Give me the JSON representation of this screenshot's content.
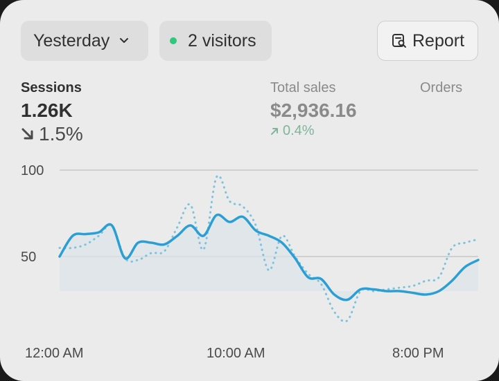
{
  "toolbar": {
    "date_range": "Yesterday",
    "visitors": "2 visitors",
    "report_label": "Report"
  },
  "metrics": {
    "sessions": {
      "label": "Sessions",
      "value": "1.26K",
      "change": "1.5%",
      "direction": "down"
    },
    "total_sales": {
      "label": "Total sales",
      "value": "$2,936.16",
      "change": "0.4%",
      "direction": "up"
    },
    "orders": {
      "label": "Orders"
    }
  },
  "colors": {
    "primary_line": "#2b9fd4",
    "comparison_line": "#7cc3df",
    "live_dot": "#2ec97c",
    "positive_change": "#7fb59a"
  },
  "chart_data": {
    "type": "line",
    "ylim": [
      0,
      100
    ],
    "y_ticks": [
      "100",
      "50"
    ],
    "x_tick_labels": [
      "12:00 AM",
      "10:00 AM",
      "8:00 PM"
    ],
    "grid": true,
    "series": [
      {
        "style": "solid",
        "values": [
          50,
          62,
          63,
          64,
          68,
          49,
          58,
          58,
          57,
          62,
          68,
          62,
          74,
          70,
          73,
          65,
          62,
          58,
          49,
          38,
          37,
          28,
          25,
          31,
          31,
          30,
          30,
          29,
          28,
          30,
          36,
          44,
          48
        ]
      },
      {
        "style": "dotted",
        "values": [
          55,
          55,
          57,
          62,
          68,
          49,
          48,
          52,
          53,
          67,
          80,
          54,
          96,
          82,
          79,
          68,
          42,
          62,
          50,
          40,
          34,
          18,
          13,
          30,
          30,
          31,
          32,
          33,
          36,
          38,
          55,
          58,
          60
        ]
      }
    ]
  }
}
